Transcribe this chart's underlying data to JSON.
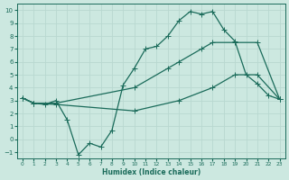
{
  "xlabel": "Humidex (Indice chaleur)",
  "bg_color": "#cce8e0",
  "line_color": "#1a6b5a",
  "grid_color": "#b8d8d0",
  "xlim": [
    -0.5,
    23.5
  ],
  "ylim": [
    -1.5,
    10.5
  ],
  "xticks": [
    0,
    1,
    2,
    3,
    4,
    5,
    6,
    7,
    8,
    9,
    10,
    11,
    12,
    13,
    14,
    15,
    16,
    17,
    18,
    19,
    20,
    21,
    22,
    23
  ],
  "yticks": [
    -1,
    0,
    1,
    2,
    3,
    4,
    5,
    6,
    7,
    8,
    9,
    10
  ],
  "line1_x": [
    0,
    1,
    2,
    3,
    4,
    5,
    6,
    7,
    8,
    9,
    10,
    11,
    12,
    13,
    14,
    15,
    16,
    17,
    18,
    19,
    20,
    21,
    22,
    23
  ],
  "line1_y": [
    3.2,
    2.8,
    2.7,
    3.0,
    1.5,
    -1.2,
    -0.3,
    -0.6,
    0.7,
    4.2,
    5.5,
    7.0,
    7.2,
    8.0,
    9.2,
    9.9,
    9.7,
    9.9,
    8.5,
    7.6,
    5.0,
    4.3,
    3.4,
    3.1
  ],
  "line2_x": [
    0,
    1,
    3,
    10,
    13,
    14,
    16,
    17,
    19,
    21,
    23
  ],
  "line2_y": [
    3.2,
    2.8,
    2.8,
    4.0,
    5.5,
    6.0,
    7.0,
    7.5,
    7.5,
    7.5,
    3.1
  ],
  "line3_x": [
    0,
    1,
    3,
    10,
    14,
    17,
    19,
    21,
    23
  ],
  "line3_y": [
    3.2,
    2.8,
    2.7,
    2.2,
    3.0,
    4.0,
    5.0,
    5.0,
    3.1
  ],
  "markersize": 3,
  "linewidth": 0.9
}
